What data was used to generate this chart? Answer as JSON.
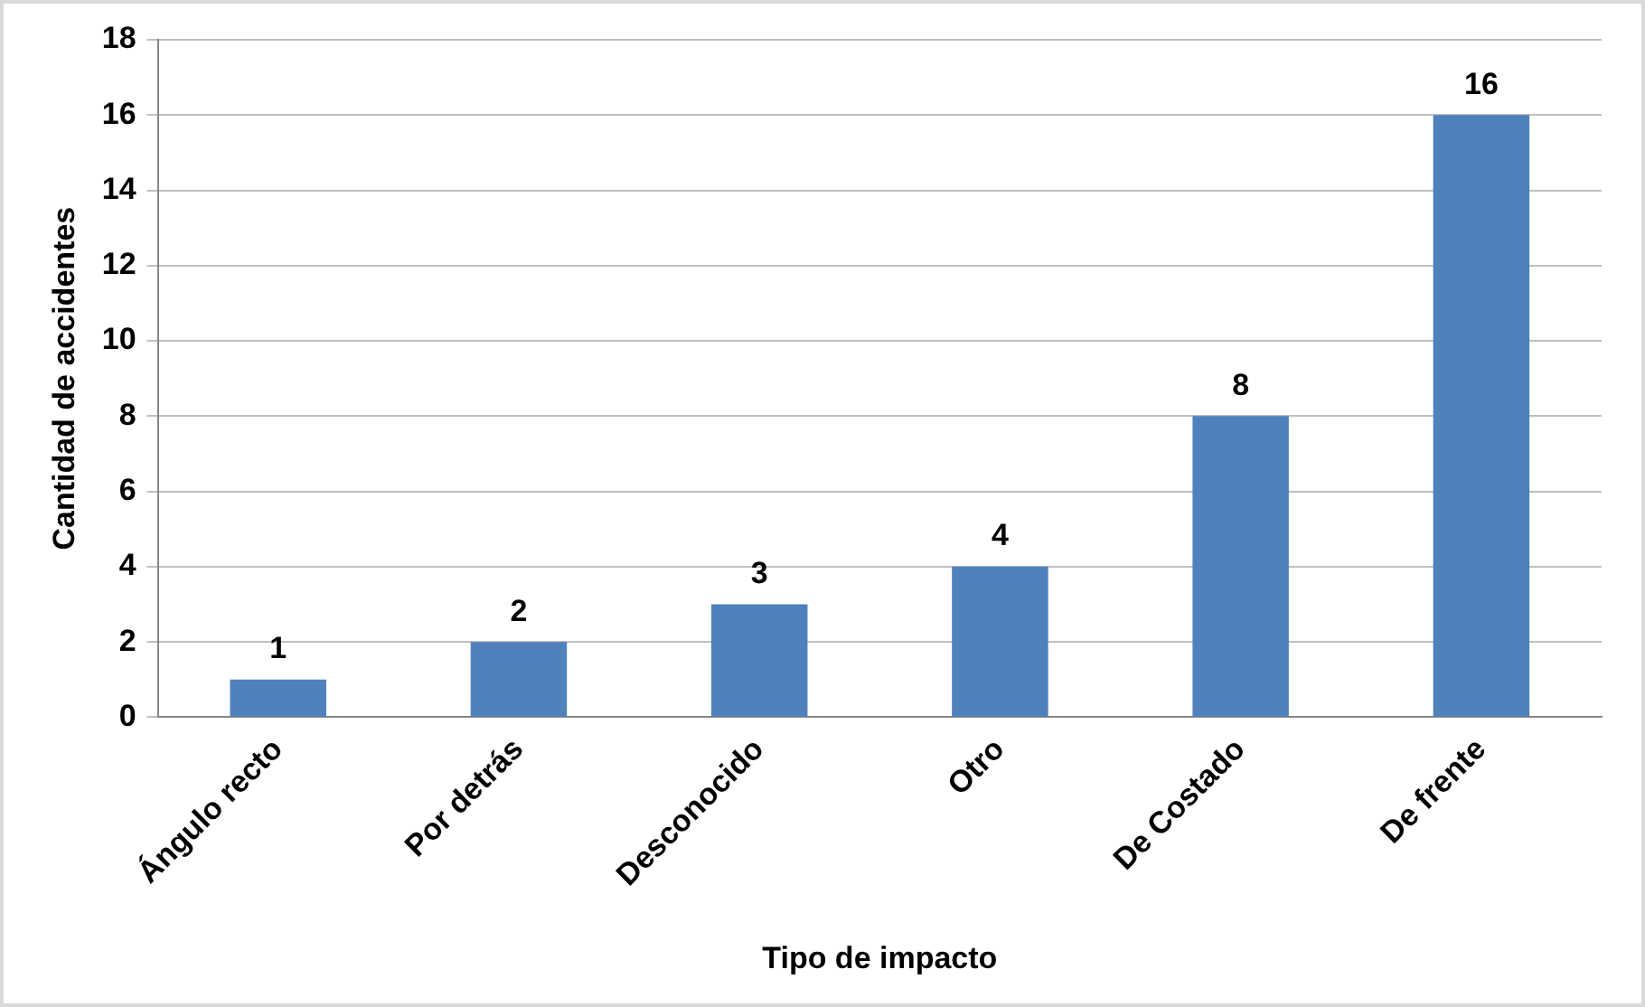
{
  "chart_data": {
    "type": "bar",
    "xlabel": "Tipo de impacto",
    "ylabel": "Cantidad de accidentes",
    "categories": [
      "Ángulo recto",
      "Por detrás",
      "Desconocido",
      "Otro",
      "De Costado",
      "De frente"
    ],
    "values": [
      1,
      2,
      3,
      4,
      8,
      16
    ],
    "color": "#4f81bd",
    "ylim": [
      0,
      18
    ],
    "yticks": [
      0,
      2,
      4,
      6,
      8,
      10,
      12,
      14,
      16,
      18
    ],
    "grid": "y",
    "data_labels": true,
    "legend": false
  }
}
